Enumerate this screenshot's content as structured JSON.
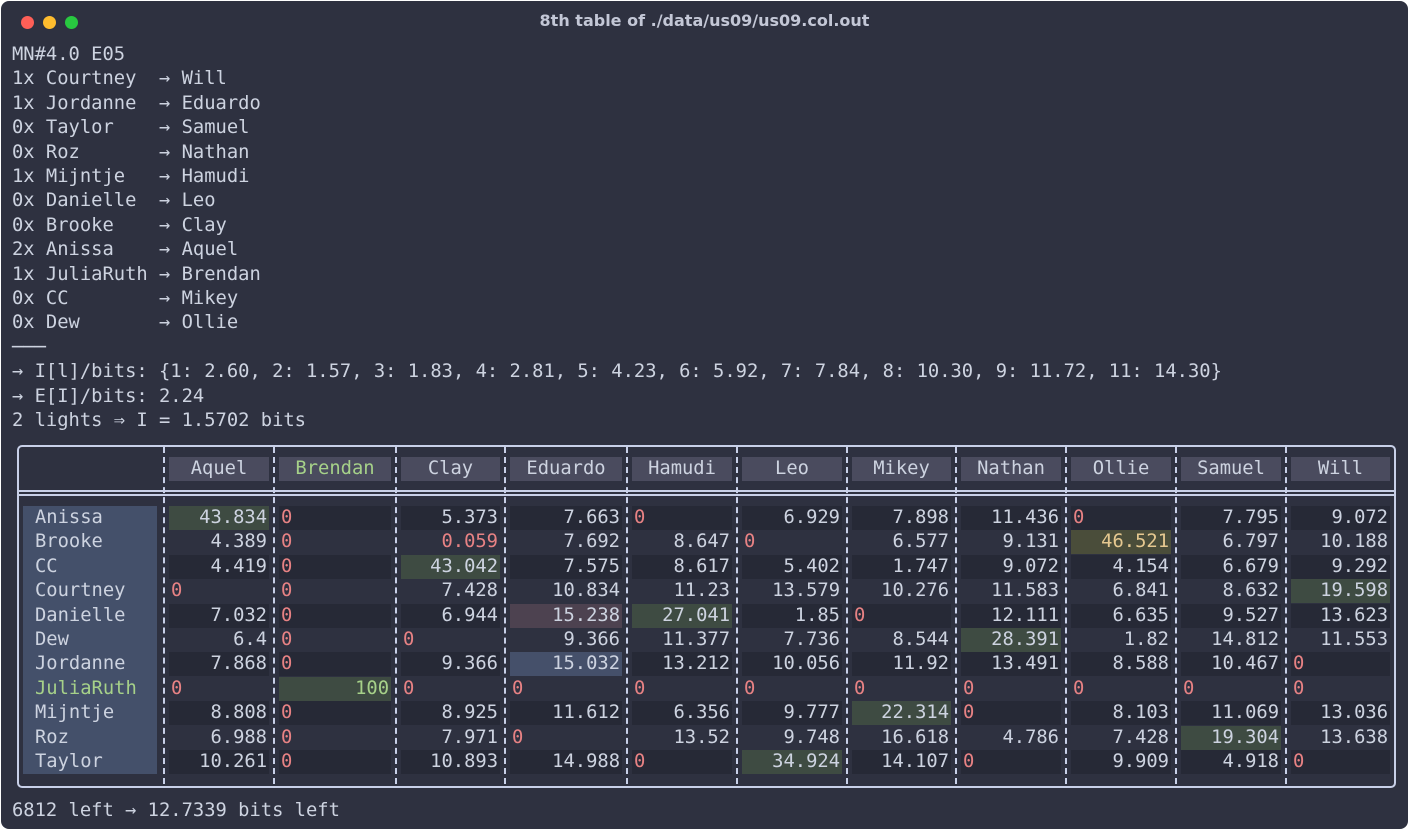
{
  "window": {
    "title": "8th table of ./data/us09/us09.col.out"
  },
  "lines": [
    "MN#4.0 E05",
    "1x Courtney  → Will",
    "1x Jordanne  → Eduardo",
    "0x Taylor    → Samuel",
    "0x Roz       → Nathan",
    "1x Mijntje   → Hamudi",
    "0x Danielle  → Leo",
    "0x Brooke    → Clay",
    "2x Anissa    → Aquel",
    "1x JuliaRuth → Brendan",
    "0x CC        → Mikey",
    "0x Dew       → Ollie",
    "───",
    "→ I[l]/bits: {1: 2.60, 2: 1.57, 3: 1.83, 4: 2.81, 5: 4.23, 6: 5.92, 7: 7.84, 8: 10.30, 9: 11.72, 11: 14.30}",
    "→ E[I]/bits: 2.24",
    "2 lights ⇒ I = 1.5702 bits"
  ],
  "table": {
    "columns": [
      "Aquel",
      "Brendan",
      "Clay",
      "Eduardo",
      "Hamudi",
      "Leo",
      "Mikey",
      "Nathan",
      "Ollie",
      "Samuel",
      "Will"
    ],
    "rows": [
      {
        "name": "Anissa",
        "values": [
          43.834,
          0,
          5.373,
          7.663,
          0,
          6.929,
          7.898,
          11.436,
          0,
          7.795,
          9.072
        ]
      },
      {
        "name": "Brooke",
        "values": [
          4.389,
          0,
          0.059,
          7.692,
          8.647,
          0,
          6.577,
          9.131,
          46.521,
          6.797,
          10.188
        ]
      },
      {
        "name": "CC",
        "values": [
          4.419,
          0,
          43.042,
          7.575,
          8.617,
          5.402,
          1.747,
          9.072,
          4.154,
          6.679,
          9.292
        ]
      },
      {
        "name": "Courtney",
        "values": [
          0,
          0,
          7.428,
          10.834,
          11.23,
          13.579,
          10.276,
          11.583,
          6.841,
          8.632,
          19.598
        ]
      },
      {
        "name": "Danielle",
        "values": [
          7.032,
          0,
          6.944,
          15.238,
          27.041,
          1.85,
          0,
          12.111,
          6.635,
          9.527,
          13.623
        ]
      },
      {
        "name": "Dew",
        "values": [
          6.4,
          0,
          0,
          9.366,
          11.377,
          7.736,
          8.544,
          28.391,
          1.82,
          14.812,
          11.553
        ]
      },
      {
        "name": "Jordanne",
        "values": [
          7.868,
          0,
          9.366,
          15.032,
          13.212,
          10.056,
          11.92,
          13.491,
          8.588,
          10.467,
          0
        ]
      },
      {
        "name": "JuliaRuth",
        "values": [
          0,
          100,
          0,
          0,
          0,
          0,
          0,
          0,
          0,
          0,
          0
        ]
      },
      {
        "name": "Mijntje",
        "values": [
          8.808,
          0,
          8.925,
          11.612,
          6.356,
          9.777,
          22.314,
          0,
          8.103,
          11.069,
          13.036
        ]
      },
      {
        "name": "Roz",
        "values": [
          6.988,
          0,
          7.971,
          0,
          13.52,
          9.748,
          16.618,
          4.786,
          7.428,
          19.304,
          13.638
        ]
      },
      {
        "name": "Taylor",
        "values": [
          10.261,
          0,
          10.893,
          14.988,
          0,
          34.924,
          14.107,
          0,
          9.909,
          4.918,
          0
        ]
      }
    ]
  },
  "footer": "6812 left → 12.7339 bits left"
}
